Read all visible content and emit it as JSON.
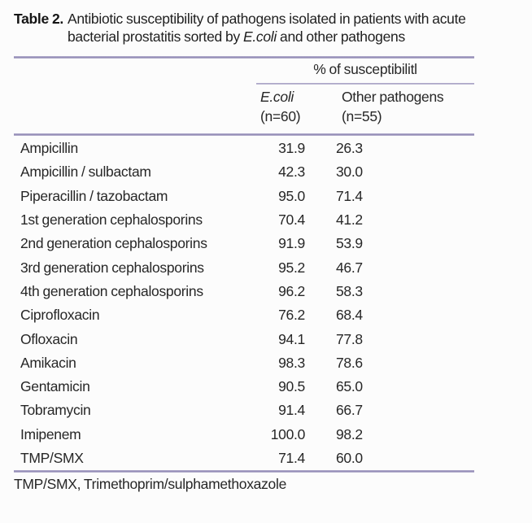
{
  "title": {
    "label": "Table 2.",
    "text_before": "Antibiotic susceptibility of pathogens isolated in patients with acute bacterial prostatitis sorted by ",
    "italic": "E.coli",
    "text_after": " and other pathogens"
  },
  "table": {
    "group_header": "% of susceptibilitl",
    "columns": [
      {
        "name": "E.coli",
        "sub": "(n=60)"
      },
      {
        "name": "Other pathogens",
        "sub": "(n=55)"
      }
    ],
    "rows": [
      {
        "label": "Ampicillin",
        "ecoli": "31.9",
        "other": "26.3"
      },
      {
        "label": "Ampicillin / sulbactam",
        "ecoli": "42.3",
        "other": "30.0"
      },
      {
        "label": "Piperacillin / tazobactam",
        "ecoli": "95.0",
        "other": "71.4"
      },
      {
        "label": "1st generation cephalosporins",
        "ecoli": "70.4",
        "other": "41.2"
      },
      {
        "label": "2nd generation cephalosporins",
        "ecoli": "91.9",
        "other": "53.9"
      },
      {
        "label": "3rd generation cephalosporins",
        "ecoli": "95.2",
        "other": "46.7"
      },
      {
        "label": "4th generation cephalosporins",
        "ecoli": "96.2",
        "other": "58.3"
      },
      {
        "label": "Ciprofloxacin",
        "ecoli": "76.2",
        "other": "68.4"
      },
      {
        "label": "Ofloxacin",
        "ecoli": "94.1",
        "other": "77.8"
      },
      {
        "label": "Amikacin",
        "ecoli": "98.3",
        "other": "78.6"
      },
      {
        "label": "Gentamicin",
        "ecoli": "90.5",
        "other": "65.0"
      },
      {
        "label": "Tobramycin",
        "ecoli": "91.4",
        "other": "66.7"
      },
      {
        "label": "Imipenem",
        "ecoli": "100.0",
        "other": "98.2"
      },
      {
        "label": "TMP/SMX",
        "ecoli": "71.4",
        "other": "60.0"
      }
    ]
  },
  "footnote": "TMP/SMX, Trimethoprim/sulphamethoxazole",
  "colors": {
    "rule": "#968fb9",
    "text": "#272727"
  }
}
